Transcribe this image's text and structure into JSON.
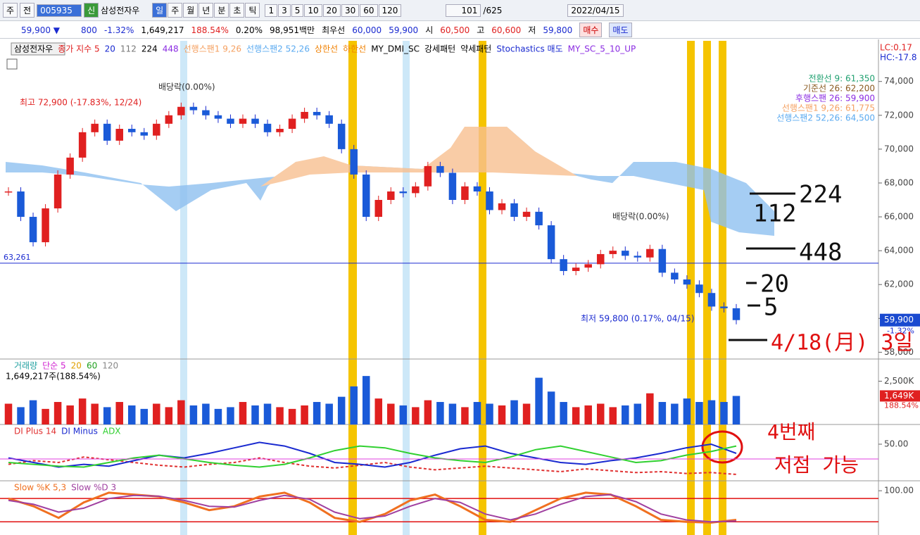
{
  "toolbar": {
    "period": "주",
    "compare": "전",
    "code": "005935",
    "badge": "신",
    "name": "삼성전자우",
    "periods": [
      "일",
      "주",
      "월",
      "년",
      "분",
      "초",
      "틱"
    ],
    "intervals": [
      "1",
      "3",
      "5",
      "10",
      "20",
      "30",
      "60",
      "120"
    ],
    "count": "101",
    "total": "/625",
    "date": "2022/04/15"
  },
  "quote": {
    "price": "59,900 ▼",
    "change": "800",
    "rate": "-1.32%",
    "volume": "1,649,217",
    "volume_rate": "188.54%",
    "turnover": "0.20%",
    "amount": "98,951백만",
    "best_label": "최우선",
    "ask": "60,000",
    "bid": "59,900",
    "open_label": "시",
    "open": "60,500",
    "high_label": "고",
    "high": "60,600",
    "low_label": "저",
    "low": "59,800",
    "buy": "매수",
    "sell": "매도"
  },
  "price_chart": {
    "legend": [
      "삼성전자우",
      "종가 지수 5",
      "20",
      "112",
      "224",
      "448",
      "선행스팬1 9,26",
      "선행스팬2 52,26",
      "상한선",
      "하한선",
      "MY_DMI_SC",
      "강세패턴",
      "약세패턴",
      "Stochastics 매도",
      "MY_SC_5_10_UP"
    ],
    "legend_colors": [
      "#000",
      "#e02020",
      "#1a2ad0",
      "#777",
      "#000",
      "#8a2be2",
      "#f5a060",
      "#5aaaf0",
      "#f08000",
      "#f08000",
      "#000",
      "#000",
      "#000",
      "#1a2ad0",
      "#8a2be2"
    ],
    "ichimoku": [
      "전환선 9: 61,350",
      "기준선 26: 62,200",
      "후행스팬 26: 59,900",
      "선행스팬1 9,26: 61,775",
      "선행스팬2 52,26: 64,500"
    ],
    "ichimoku_colors": [
      "#20a070",
      "#8a5a20",
      "#8a2be2",
      "#f5a060",
      "#5aaaf0"
    ],
    "lc": "LC:0.17",
    "hc": "HC:-17.8",
    "ylim": [
      57600,
      76400
    ],
    "yticks": [
      {
        "value": 58000,
        "label": "58,000"
      },
      {
        "value": 60000,
        "label": "60,000"
      },
      {
        "value": 62000,
        "label": "62,000"
      },
      {
        "value": 64000,
        "label": "64,000"
      },
      {
        "value": 66000,
        "label": "66,000"
      },
      {
        "value": 68000,
        "label": "68,000"
      },
      {
        "value": 70000,
        "label": "70,000"
      },
      {
        "value": 72000,
        "label": "72,000"
      },
      {
        "value": 74000,
        "label": "74,000"
      }
    ],
    "closes": [
      67500,
      66000,
      64500,
      66500,
      68500,
      69500,
      71000,
      71500,
      70500,
      71200,
      71000,
      70800,
      71500,
      72000,
      72500,
      72300,
      72000,
      71800,
      71500,
      71800,
      71500,
      71000,
      71200,
      71800,
      72200,
      72000,
      71500,
      70000,
      68500,
      66000,
      67000,
      67500,
      67400,
      67800,
      69000,
      68600,
      67000,
      67800,
      67500,
      66400,
      66800,
      66000,
      66300,
      65500,
      63500,
      62800,
      63000,
      63200,
      63800,
      64000,
      63700,
      63600,
      64100,
      62700,
      62300,
      62000,
      61500,
      60700,
      60600,
      59900
    ],
    "last": {
      "value": 59900,
      "label": "59,900"
    },
    "last_rate": "-1.32%",
    "level": {
      "value": 63261,
      "label": "63,261"
    },
    "annotations": {
      "high": "최고 72,900 (-17.83%, 12/24)",
      "dividend1": "배당락(0.00%)",
      "dividend2": "배당락(0.00%)",
      "low": "최저 59,800 (0.17%, 04/15)"
    },
    "handwriting": [
      "224",
      "112",
      "448",
      "20",
      "5",
      "4/18(月) 3일"
    ]
  },
  "volume_chart": {
    "legend": [
      "거래량",
      "단순 5",
      "20",
      "60",
      "120"
    ],
    "legend_colors": [
      "#20a0a0",
      "#d020d0",
      "#e0a000",
      "#20a020",
      "#888"
    ],
    "info": "1,649,217주(188.54%)",
    "ylim": [
      0,
      3700
    ],
    "yticks": [
      {
        "value": 2500,
        "label": "2,500K"
      }
    ],
    "last": {
      "value": 1649,
      "label": "1,649K"
    },
    "last_rate": "188.54%",
    "values": [
      1200,
      1000,
      1400,
      900,
      1300,
      1100,
      1500,
      1200,
      1000,
      1300,
      1100,
      900,
      1200,
      1000,
      1400,
      1100,
      1200,
      900,
      1000,
      1300,
      1100,
      1200,
      1000,
      900,
      1100,
      1300,
      1200,
      1600,
      2200,
      2800,
      1500,
      1200,
      1100,
      1000,
      1400,
      1300,
      1200,
      1000,
      1300,
      1200,
      1100,
      1400,
      1200,
      2700,
      1900,
      1300,
      1000,
      1100,
      1200,
      1000,
      1100,
      1200,
      1800,
      1300,
      1200,
      1500,
      1300,
      1400,
      1300,
      1649
    ]
  },
  "dmi_chart": {
    "ylim": [
      10,
      70
    ],
    "yticks": [
      {
        "value": 50,
        "label": "50.00"
      }
    ],
    "series": [
      {
        "name": "DI Plus 14",
        "color": "#e03030",
        "values": [
          28,
          32,
          30,
          36,
          33,
          30,
          27,
          25,
          28,
          30,
          35,
          30,
          26,
          24,
          27,
          30,
          25,
          22,
          24,
          26,
          24,
          22,
          20,
          23,
          21,
          19,
          20,
          18,
          19,
          17
        ]
      },
      {
        "name": "DI Minus",
        "color": "#1a2ad0",
        "values": [
          35,
          30,
          25,
          28,
          26,
          32,
          38,
          35,
          40,
          46,
          52,
          48,
          40,
          30,
          28,
          25,
          30,
          38,
          45,
          48,
          40,
          35,
          30,
          28,
          32,
          35,
          40,
          46,
          50,
          40
        ]
      },
      {
        "name": "ADX",
        "color": "#30d030",
        "values": [
          30,
          28,
          26,
          25,
          30,
          35,
          38,
          34,
          30,
          27,
          25,
          28,
          35,
          43,
          48,
          46,
          40,
          35,
          32,
          30,
          36,
          44,
          48,
          42,
          36,
          30,
          32,
          38,
          42,
          48
        ]
      }
    ],
    "handwriting": [
      "4번째",
      "저점 가능"
    ]
  },
  "stoch_chart": {
    "ylim": [
      -14,
      122
    ],
    "yticks": [
      {
        "value": 100,
        "label": "100.00"
      }
    ],
    "levels": [
      80,
      20
    ],
    "series": [
      {
        "name": "Slow %K 5,3",
        "color": "#f07020",
        "values": [
          80,
          60,
          30,
          70,
          95,
          90,
          85,
          70,
          50,
          60,
          85,
          95,
          70,
          30,
          20,
          40,
          75,
          90,
          60,
          25,
          20,
          50,
          80,
          95,
          90,
          60,
          25,
          20,
          18,
          25
        ]
      },
      {
        "name": "Slow %D 3",
        "color": "#a040a0",
        "values": [
          75,
          65,
          45,
          55,
          80,
          88,
          86,
          75,
          60,
          58,
          75,
          88,
          78,
          45,
          28,
          35,
          60,
          80,
          70,
          40,
          25,
          40,
          65,
          85,
          90,
          72,
          40,
          25,
          20,
          22
        ]
      }
    ]
  }
}
